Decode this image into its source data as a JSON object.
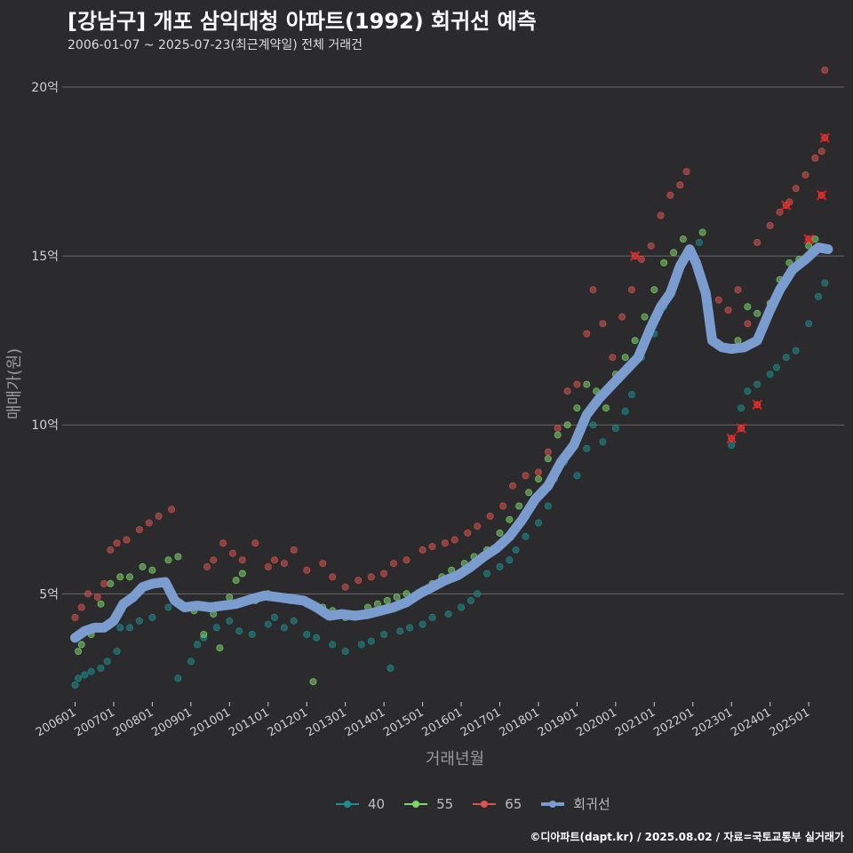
{
  "header": {
    "title": "[강남구] 개포 삼익대청 아파트(1992) 회귀선 예측",
    "subtitle": "2006-01-07 ~ 2025-07-23(최근계약일) 전체 거래건"
  },
  "caption": "©디아파트(dapt.kr) / 2025.08.02 / 자료=국토교통부 실거래가",
  "colors": {
    "background": "#2b2b2d",
    "grid": "#6a6a6a",
    "s40": "#1e8e8e",
    "s55": "#7ed66a",
    "s65": "#d9534f",
    "regression": "#7b9ccf",
    "cancel_mark": "#e02020"
  },
  "chart_data": {
    "type": "scatter",
    "title": "[강남구] 개포 삼익대청 아파트(1992) 회귀선 예측",
    "xlabel": "거래년월",
    "ylabel": "매매가(원)",
    "xlim": [
      "2005-09",
      "2025-12"
    ],
    "ylim": [
      1.8,
      21
    ],
    "y_unit_suffix": "억",
    "y_ticks": [
      5,
      10,
      15,
      20
    ],
    "y_tick_labels": [
      "5억",
      "10억",
      "15억",
      "20억"
    ],
    "x_ticks": [
      "2006-01",
      "2007-01",
      "2008-01",
      "2009-01",
      "2010-01",
      "2011-01",
      "2012-01",
      "2013-01",
      "2014-01",
      "2015-01",
      "2016-01",
      "2017-01",
      "2018-01",
      "2019-01",
      "2020-01",
      "2021-01",
      "2022-01",
      "2023-01",
      "2024-01",
      "2025-01"
    ],
    "x_tick_labels": [
      "200601",
      "200701",
      "200801",
      "200901",
      "201001",
      "201101",
      "201201",
      "201301",
      "201401",
      "201501",
      "201601",
      "201701",
      "201801",
      "201901",
      "202001",
      "202101",
      "202201",
      "202301",
      "202401",
      "202501"
    ],
    "grid": "horizontal",
    "legend": {
      "placement": "bottom",
      "entries": [
        "40",
        "55",
        "65",
        "회귀선"
      ]
    },
    "series": [
      {
        "name": "40",
        "points": [
          [
            "2006-01",
            2.3
          ],
          [
            "2006-02",
            2.5
          ],
          [
            "2006-04",
            2.6
          ],
          [
            "2006-06",
            2.7
          ],
          [
            "2006-09",
            2.8
          ],
          [
            "2006-11",
            3.0
          ],
          [
            "2007-02",
            3.3
          ],
          [
            "2007-03",
            4.0
          ],
          [
            "2007-06",
            4.0
          ],
          [
            "2007-09",
            4.2
          ],
          [
            "2008-01",
            4.3
          ],
          [
            "2008-06",
            4.6
          ],
          [
            "2008-09",
            2.5
          ],
          [
            "2009-01",
            3.0
          ],
          [
            "2009-03",
            3.5
          ],
          [
            "2009-05",
            3.7
          ],
          [
            "2009-09",
            4.0
          ],
          [
            "2010-01",
            4.2
          ],
          [
            "2010-04",
            3.9
          ],
          [
            "2010-08",
            3.8
          ],
          [
            "2011-01",
            4.1
          ],
          [
            "2011-03",
            4.3
          ],
          [
            "2011-06",
            4.0
          ],
          [
            "2011-09",
            4.2
          ],
          [
            "2012-01",
            3.8
          ],
          [
            "2012-04",
            3.7
          ],
          [
            "2012-09",
            3.5
          ],
          [
            "2013-01",
            3.3
          ],
          [
            "2013-06",
            3.5
          ],
          [
            "2013-09",
            3.6
          ],
          [
            "2014-01",
            3.8
          ],
          [
            "2014-03",
            2.8
          ],
          [
            "2014-06",
            3.9
          ],
          [
            "2014-09",
            4.0
          ],
          [
            "2015-01",
            4.1
          ],
          [
            "2015-04",
            4.3
          ],
          [
            "2015-09",
            4.4
          ],
          [
            "2016-01",
            4.6
          ],
          [
            "2016-04",
            4.8
          ],
          [
            "2016-06",
            5.0
          ],
          [
            "2016-09",
            5.6
          ],
          [
            "2017-01",
            5.8
          ],
          [
            "2017-04",
            6.0
          ],
          [
            "2017-06",
            6.3
          ],
          [
            "2017-09",
            6.7
          ],
          [
            "2018-01",
            7.1
          ],
          [
            "2018-04",
            7.6
          ],
          [
            "2018-06",
            8.4
          ],
          [
            "2018-09",
            8.9
          ],
          [
            "2019-01",
            8.5
          ],
          [
            "2019-04",
            9.3
          ],
          [
            "2019-06",
            10.0
          ],
          [
            "2019-09",
            9.5
          ],
          [
            "2020-01",
            9.9
          ],
          [
            "2020-04",
            10.4
          ],
          [
            "2020-06",
            10.9
          ],
          [
            "2020-09",
            12.0
          ],
          [
            "2021-01",
            12.7
          ],
          [
            "2021-04",
            13.5
          ],
          [
            "2021-09",
            14.6
          ],
          [
            "2022-03",
            15.4
          ],
          [
            "2023-01",
            9.4
          ],
          [
            "2023-04",
            10.5
          ],
          [
            "2023-06",
            11.0
          ],
          [
            "2023-09",
            11.2
          ],
          [
            "2024-01",
            11.5
          ],
          [
            "2024-03",
            11.7
          ],
          [
            "2024-06",
            12.0
          ],
          [
            "2024-09",
            12.2
          ],
          [
            "2025-01",
            13.0
          ],
          [
            "2025-04",
            13.8
          ],
          [
            "2025-06",
            14.2
          ]
        ]
      },
      {
        "name": "55",
        "points": [
          [
            "2006-02",
            3.3
          ],
          [
            "2006-03",
            3.5
          ],
          [
            "2006-06",
            3.8
          ],
          [
            "2006-09",
            4.7
          ],
          [
            "2006-12",
            5.3
          ],
          [
            "2007-03",
            5.5
          ],
          [
            "2007-06",
            5.5
          ],
          [
            "2007-10",
            5.8
          ],
          [
            "2008-01",
            5.7
          ],
          [
            "2008-06",
            6.0
          ],
          [
            "2008-09",
            6.1
          ],
          [
            "2009-02",
            4.5
          ],
          [
            "2009-05",
            3.8
          ],
          [
            "2009-08",
            4.4
          ],
          [
            "2009-10",
            3.4
          ],
          [
            "2010-01",
            4.9
          ],
          [
            "2010-03",
            5.4
          ],
          [
            "2010-05",
            5.6
          ],
          [
            "2010-09",
            4.8
          ],
          [
            "2011-01",
            5.0
          ],
          [
            "2011-04",
            4.9
          ],
          [
            "2011-08",
            4.8
          ],
          [
            "2012-01",
            4.7
          ],
          [
            "2012-03",
            2.4
          ],
          [
            "2012-06",
            4.6
          ],
          [
            "2012-09",
            4.5
          ],
          [
            "2013-01",
            4.3
          ],
          [
            "2013-04",
            4.4
          ],
          [
            "2013-08",
            4.6
          ],
          [
            "2013-11",
            4.7
          ],
          [
            "2014-02",
            4.8
          ],
          [
            "2014-05",
            4.9
          ],
          [
            "2014-08",
            5.0
          ],
          [
            "2015-01",
            5.1
          ],
          [
            "2015-04",
            5.3
          ],
          [
            "2015-07",
            5.5
          ],
          [
            "2015-10",
            5.7
          ],
          [
            "2016-02",
            5.9
          ],
          [
            "2016-05",
            6.1
          ],
          [
            "2016-09",
            6.3
          ],
          [
            "2017-01",
            6.8
          ],
          [
            "2017-04",
            7.2
          ],
          [
            "2017-07",
            7.6
          ],
          [
            "2017-10",
            8.0
          ],
          [
            "2018-01",
            8.4
          ],
          [
            "2018-04",
            9.0
          ],
          [
            "2018-07",
            9.7
          ],
          [
            "2018-10",
            10.0
          ],
          [
            "2019-01",
            10.5
          ],
          [
            "2019-04",
            11.2
          ],
          [
            "2019-07",
            11.0
          ],
          [
            "2019-10",
            10.5
          ],
          [
            "2020-01",
            11.5
          ],
          [
            "2020-04",
            12.0
          ],
          [
            "2020-07",
            12.5
          ],
          [
            "2020-10",
            13.2
          ],
          [
            "2021-01",
            14.0
          ],
          [
            "2021-04",
            14.8
          ],
          [
            "2021-07",
            15.1
          ],
          [
            "2021-10",
            15.5
          ],
          [
            "2022-04",
            15.7
          ],
          [
            "2023-03",
            12.5
          ],
          [
            "2023-06",
            13.5
          ],
          [
            "2023-09",
            13.3
          ],
          [
            "2024-01",
            13.6
          ],
          [
            "2024-04",
            14.3
          ],
          [
            "2024-07",
            14.8
          ],
          [
            "2024-10",
            14.9
          ],
          [
            "2025-01",
            15.3
          ],
          [
            "2025-03",
            15.5
          ]
        ]
      },
      {
        "name": "65",
        "points": [
          [
            "2006-01",
            4.3
          ],
          [
            "2006-03",
            4.6
          ],
          [
            "2006-05",
            5.0
          ],
          [
            "2006-08",
            4.9
          ],
          [
            "2006-10",
            5.3
          ],
          [
            "2006-12",
            6.3
          ],
          [
            "2007-02",
            6.5
          ],
          [
            "2007-05",
            6.6
          ],
          [
            "2007-09",
            6.9
          ],
          [
            "2007-12",
            7.1
          ],
          [
            "2008-03",
            7.3
          ],
          [
            "2008-07",
            7.5
          ],
          [
            "2009-06",
            5.8
          ],
          [
            "2009-08",
            6.0
          ],
          [
            "2009-11",
            6.5
          ],
          [
            "2010-02",
            6.2
          ],
          [
            "2010-05",
            6.0
          ],
          [
            "2010-09",
            6.5
          ],
          [
            "2011-01",
            5.8
          ],
          [
            "2011-03",
            6.0
          ],
          [
            "2011-06",
            5.9
          ],
          [
            "2011-09",
            6.3
          ],
          [
            "2012-01",
            5.7
          ],
          [
            "2012-06",
            5.9
          ],
          [
            "2012-09",
            5.5
          ],
          [
            "2013-01",
            5.2
          ],
          [
            "2013-05",
            5.4
          ],
          [
            "2013-09",
            5.5
          ],
          [
            "2014-01",
            5.6
          ],
          [
            "2014-04",
            5.9
          ],
          [
            "2014-08",
            6.0
          ],
          [
            "2015-01",
            6.3
          ],
          [
            "2015-04",
            6.4
          ],
          [
            "2015-08",
            6.5
          ],
          [
            "2015-11",
            6.6
          ],
          [
            "2016-03",
            6.8
          ],
          [
            "2016-06",
            7.0
          ],
          [
            "2016-10",
            7.3
          ],
          [
            "2017-02",
            7.6
          ],
          [
            "2017-05",
            8.2
          ],
          [
            "2017-09",
            8.5
          ],
          [
            "2018-01",
            8.6
          ],
          [
            "2018-04",
            9.2
          ],
          [
            "2018-07",
            9.9
          ],
          [
            "2018-10",
            11.0
          ],
          [
            "2019-01",
            11.2
          ],
          [
            "2019-04",
            12.7
          ],
          [
            "2019-06",
            14.0
          ],
          [
            "2019-09",
            13.0
          ],
          [
            "2019-12",
            12.0
          ],
          [
            "2020-03",
            13.2
          ],
          [
            "2020-06",
            14.0
          ],
          [
            "2020-09",
            14.9
          ],
          [
            "2020-12",
            15.3
          ],
          [
            "2021-03",
            16.2
          ],
          [
            "2021-06",
            16.8
          ],
          [
            "2021-09",
            17.1
          ],
          [
            "2021-11",
            17.5
          ],
          [
            "2022-09",
            13.7
          ],
          [
            "2022-12",
            13.4
          ],
          [
            "2023-03",
            14.0
          ],
          [
            "2023-06",
            13.0
          ],
          [
            "2023-09",
            15.4
          ],
          [
            "2024-01",
            15.9
          ],
          [
            "2024-04",
            16.3
          ],
          [
            "2024-07",
            16.6
          ],
          [
            "2024-09",
            17.0
          ],
          [
            "2024-12",
            17.4
          ],
          [
            "2025-03",
            17.9
          ],
          [
            "2025-05",
            18.1
          ],
          [
            "2025-06",
            20.5
          ]
        ]
      }
    ],
    "cancelled": [
      [
        "2020-07",
        15.0
      ],
      [
        "2023-01",
        9.6
      ],
      [
        "2023-04",
        9.9
      ],
      [
        "2023-09",
        10.6
      ],
      [
        "2024-06",
        16.5
      ],
      [
        "2025-01",
        15.5
      ],
      [
        "2025-05",
        16.8
      ],
      [
        "2025-06",
        18.5
      ]
    ],
    "regression": {
      "name": "회귀선",
      "points": [
        [
          "2006-01",
          3.7
        ],
        [
          "2006-04",
          3.9
        ],
        [
          "2006-07",
          4.0
        ],
        [
          "2006-10",
          4.0
        ],
        [
          "2007-01",
          4.2
        ],
        [
          "2007-04",
          4.7
        ],
        [
          "2007-07",
          4.9
        ],
        [
          "2007-10",
          5.2
        ],
        [
          "2008-01",
          5.3
        ],
        [
          "2008-05",
          5.35
        ],
        [
          "2008-08",
          4.8
        ],
        [
          "2008-11",
          4.6
        ],
        [
          "2009-03",
          4.65
        ],
        [
          "2009-07",
          4.6
        ],
        [
          "2009-11",
          4.65
        ],
        [
          "2010-03",
          4.7
        ],
        [
          "2010-08",
          4.85
        ],
        [
          "2010-12",
          4.95
        ],
        [
          "2011-04",
          4.9
        ],
        [
          "2011-08",
          4.85
        ],
        [
          "2011-12",
          4.8
        ],
        [
          "2012-04",
          4.6
        ],
        [
          "2012-08",
          4.35
        ],
        [
          "2012-12",
          4.4
        ],
        [
          "2013-04",
          4.35
        ],
        [
          "2013-08",
          4.4
        ],
        [
          "2013-12",
          4.5
        ],
        [
          "2014-04",
          4.6
        ],
        [
          "2014-08",
          4.75
        ],
        [
          "2014-12",
          5.0
        ],
        [
          "2015-04",
          5.2
        ],
        [
          "2015-08",
          5.4
        ],
        [
          "2015-12",
          5.55
        ],
        [
          "2016-04",
          5.8
        ],
        [
          "2016-08",
          6.1
        ],
        [
          "2016-12",
          6.35
        ],
        [
          "2017-04",
          6.7
        ],
        [
          "2017-08",
          7.2
        ],
        [
          "2017-12",
          7.8
        ],
        [
          "2018-04",
          8.2
        ],
        [
          "2018-08",
          8.9
        ],
        [
          "2018-12",
          9.4
        ],
        [
          "2019-04",
          10.3
        ],
        [
          "2019-08",
          10.8
        ],
        [
          "2019-12",
          11.2
        ],
        [
          "2020-04",
          11.6
        ],
        [
          "2020-08",
          12.0
        ],
        [
          "2020-12",
          12.9
        ],
        [
          "2021-03",
          13.5
        ],
        [
          "2021-06",
          13.9
        ],
        [
          "2021-09",
          14.7
        ],
        [
          "2021-12",
          15.2
        ],
        [
          "2022-02",
          14.8
        ],
        [
          "2022-05",
          13.9
        ],
        [
          "2022-07",
          12.5
        ],
        [
          "2022-10",
          12.3
        ],
        [
          "2023-01",
          12.25
        ],
        [
          "2023-05",
          12.3
        ],
        [
          "2023-09",
          12.5
        ],
        [
          "2024-01",
          13.4
        ],
        [
          "2024-04",
          14.0
        ],
        [
          "2024-08",
          14.6
        ],
        [
          "2024-12",
          14.9
        ],
        [
          "2025-04",
          15.25
        ],
        [
          "2025-07",
          15.2
        ]
      ]
    }
  }
}
